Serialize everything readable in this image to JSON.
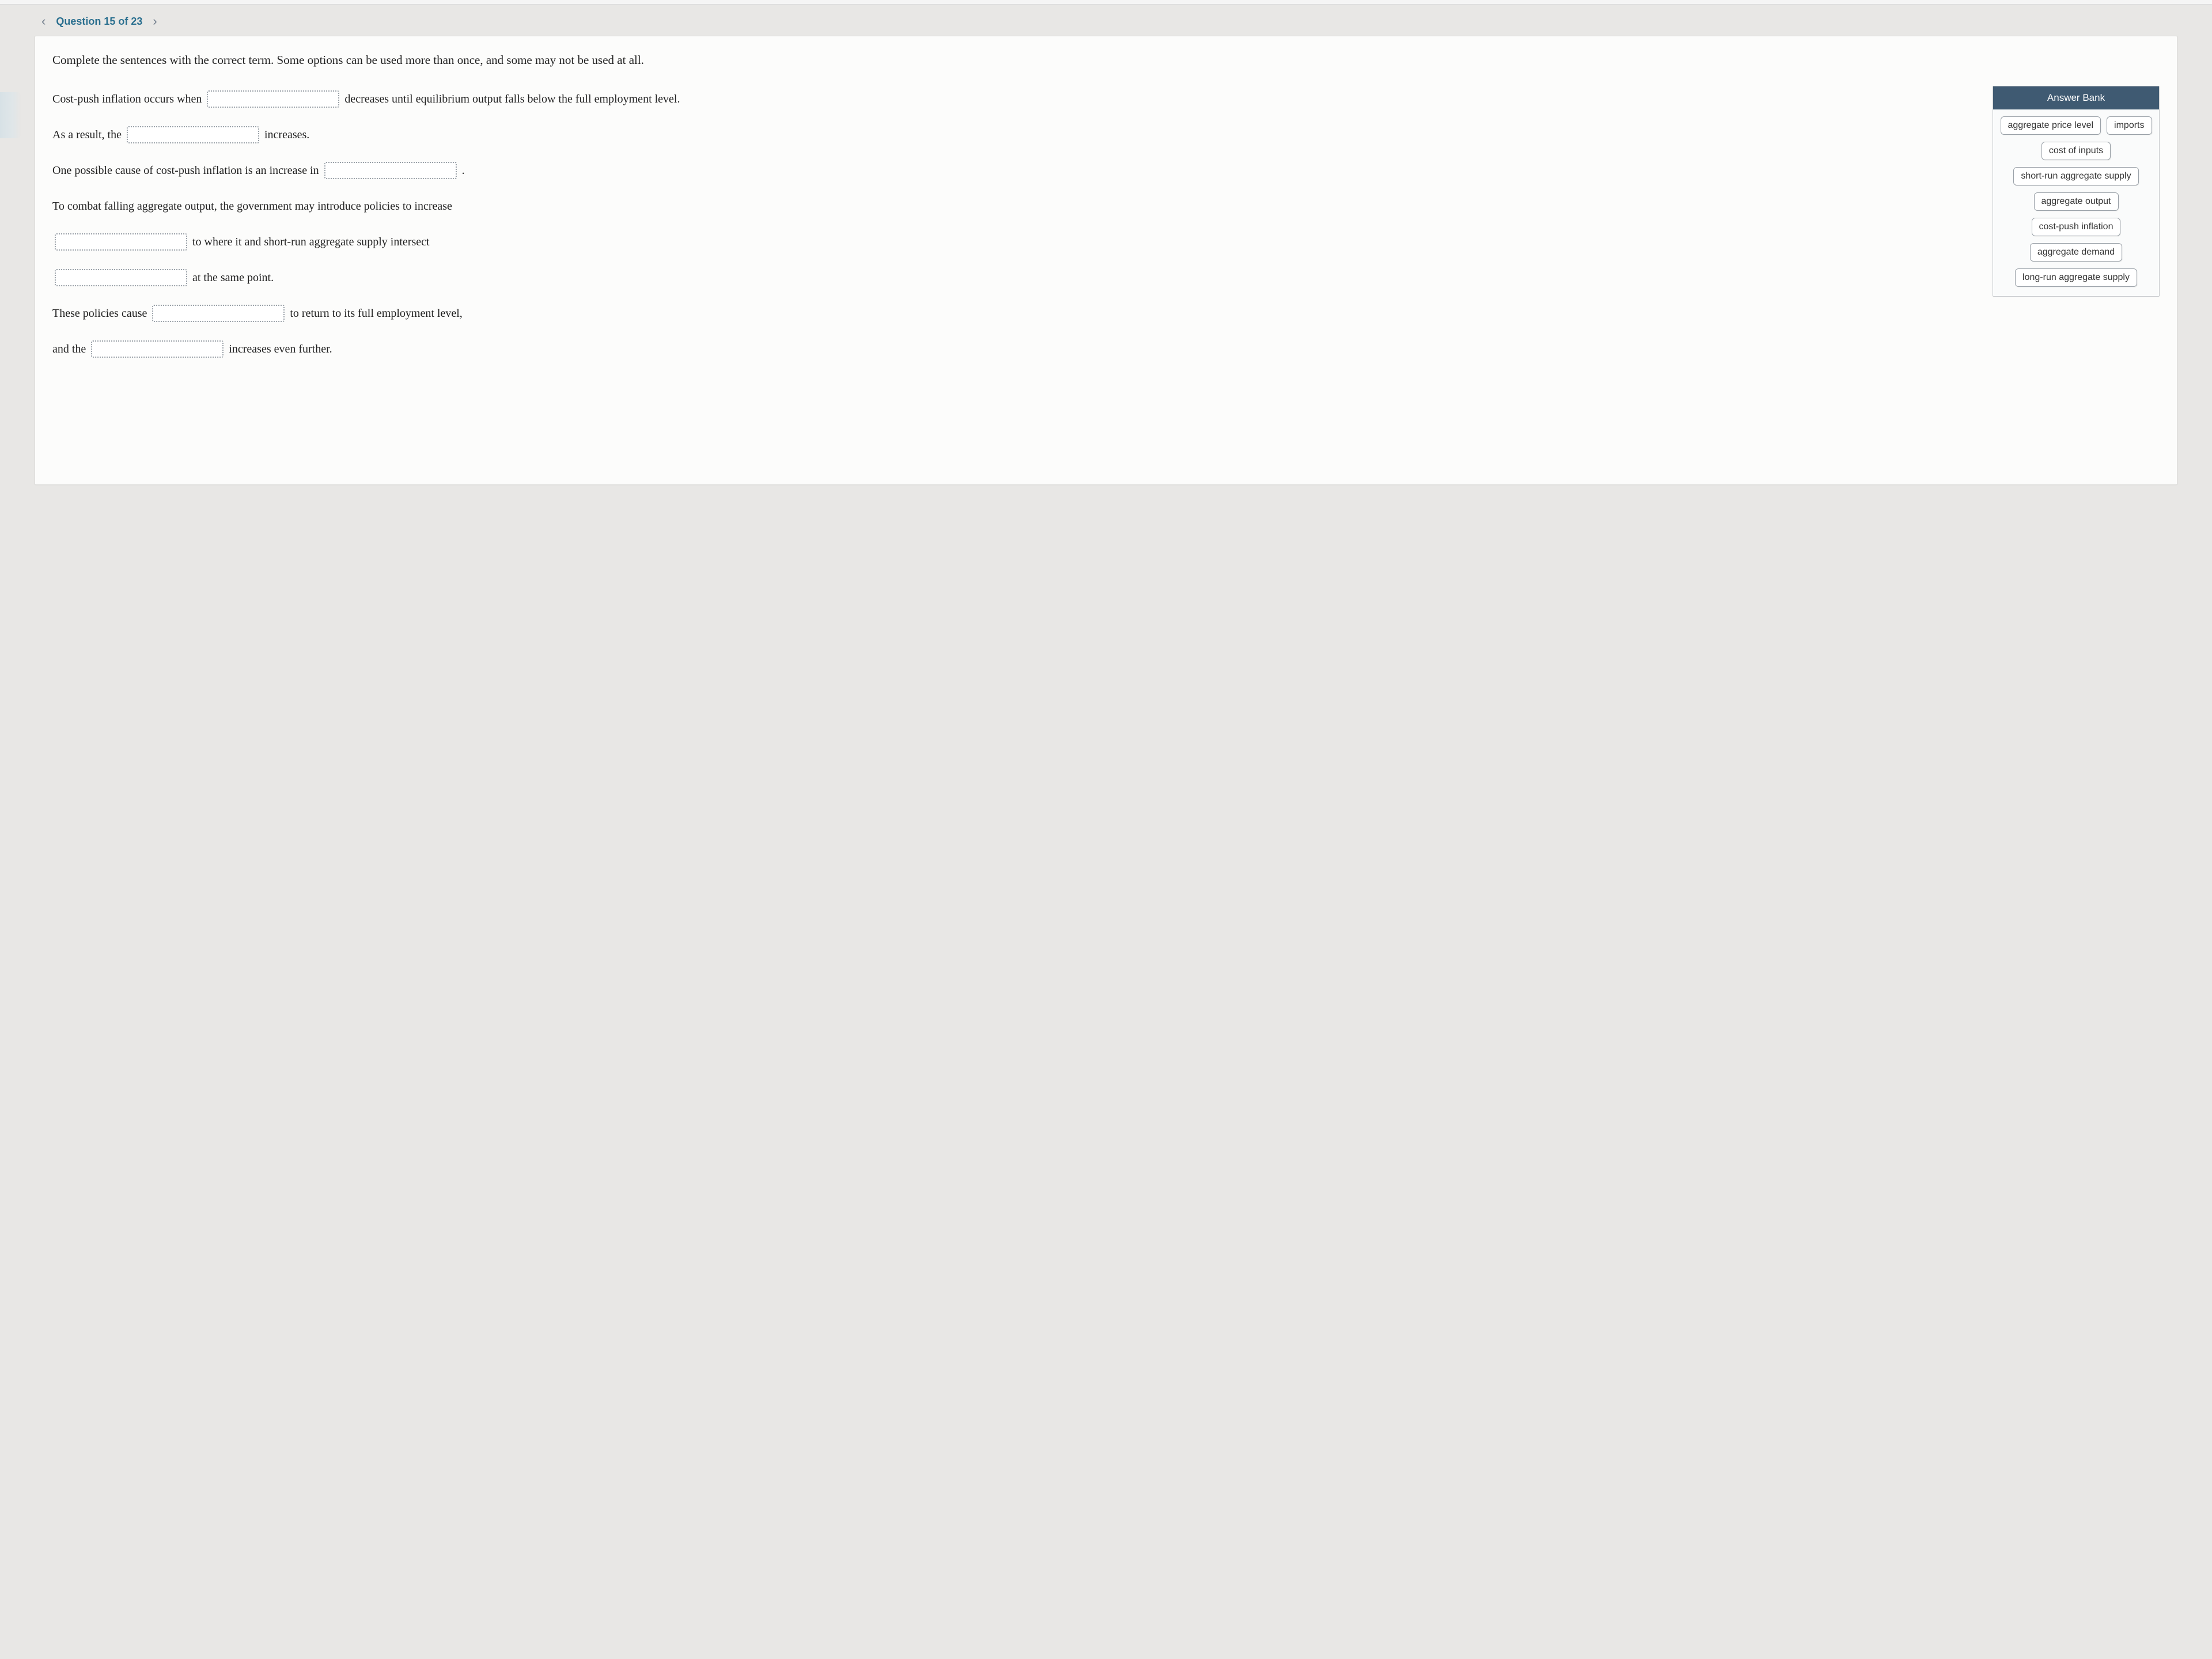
{
  "nav": {
    "prev_glyph": "‹",
    "next_glyph": "›",
    "label": "Question 15 of 23"
  },
  "instructions": "Complete the sentences with the correct term. Some options can be used more than once, and some may not be used at all.",
  "sentence": {
    "s1a": "Cost-push inflation occurs when ",
    "s1b": " decreases until equilibrium output falls below the full employment level.",
    "s2a": "As a result, the ",
    "s2b": " increases.",
    "s3a": "One possible cause of cost-push inflation is an increase in ",
    "s3b": " .",
    "s4a": "To combat falling aggregate output, the government may introduce policies to increase",
    "s5b": " to where it and short-run aggregate supply intersect",
    "s6b": " at the same point.",
    "s7a": "These policies cause ",
    "s7b": " to return to its full employment level,",
    "s8a": "and the ",
    "s8b": " increases even further."
  },
  "bank": {
    "title": "Answer Bank",
    "options": [
      "aggregate price level",
      "imports",
      "cost of inputs",
      "short-run aggregate supply",
      "aggregate output",
      "cost-push inflation",
      "aggregate demand",
      "long-run aggregate supply"
    ]
  },
  "colors": {
    "nav_accent": "#2a6f8f",
    "chev": "#6f7b8a",
    "bank_header_bg": "#3f5a72",
    "blank_border": "#9aa1a8",
    "card_bg": "#fcfcfb",
    "page_bg": "#e8e7e5"
  }
}
